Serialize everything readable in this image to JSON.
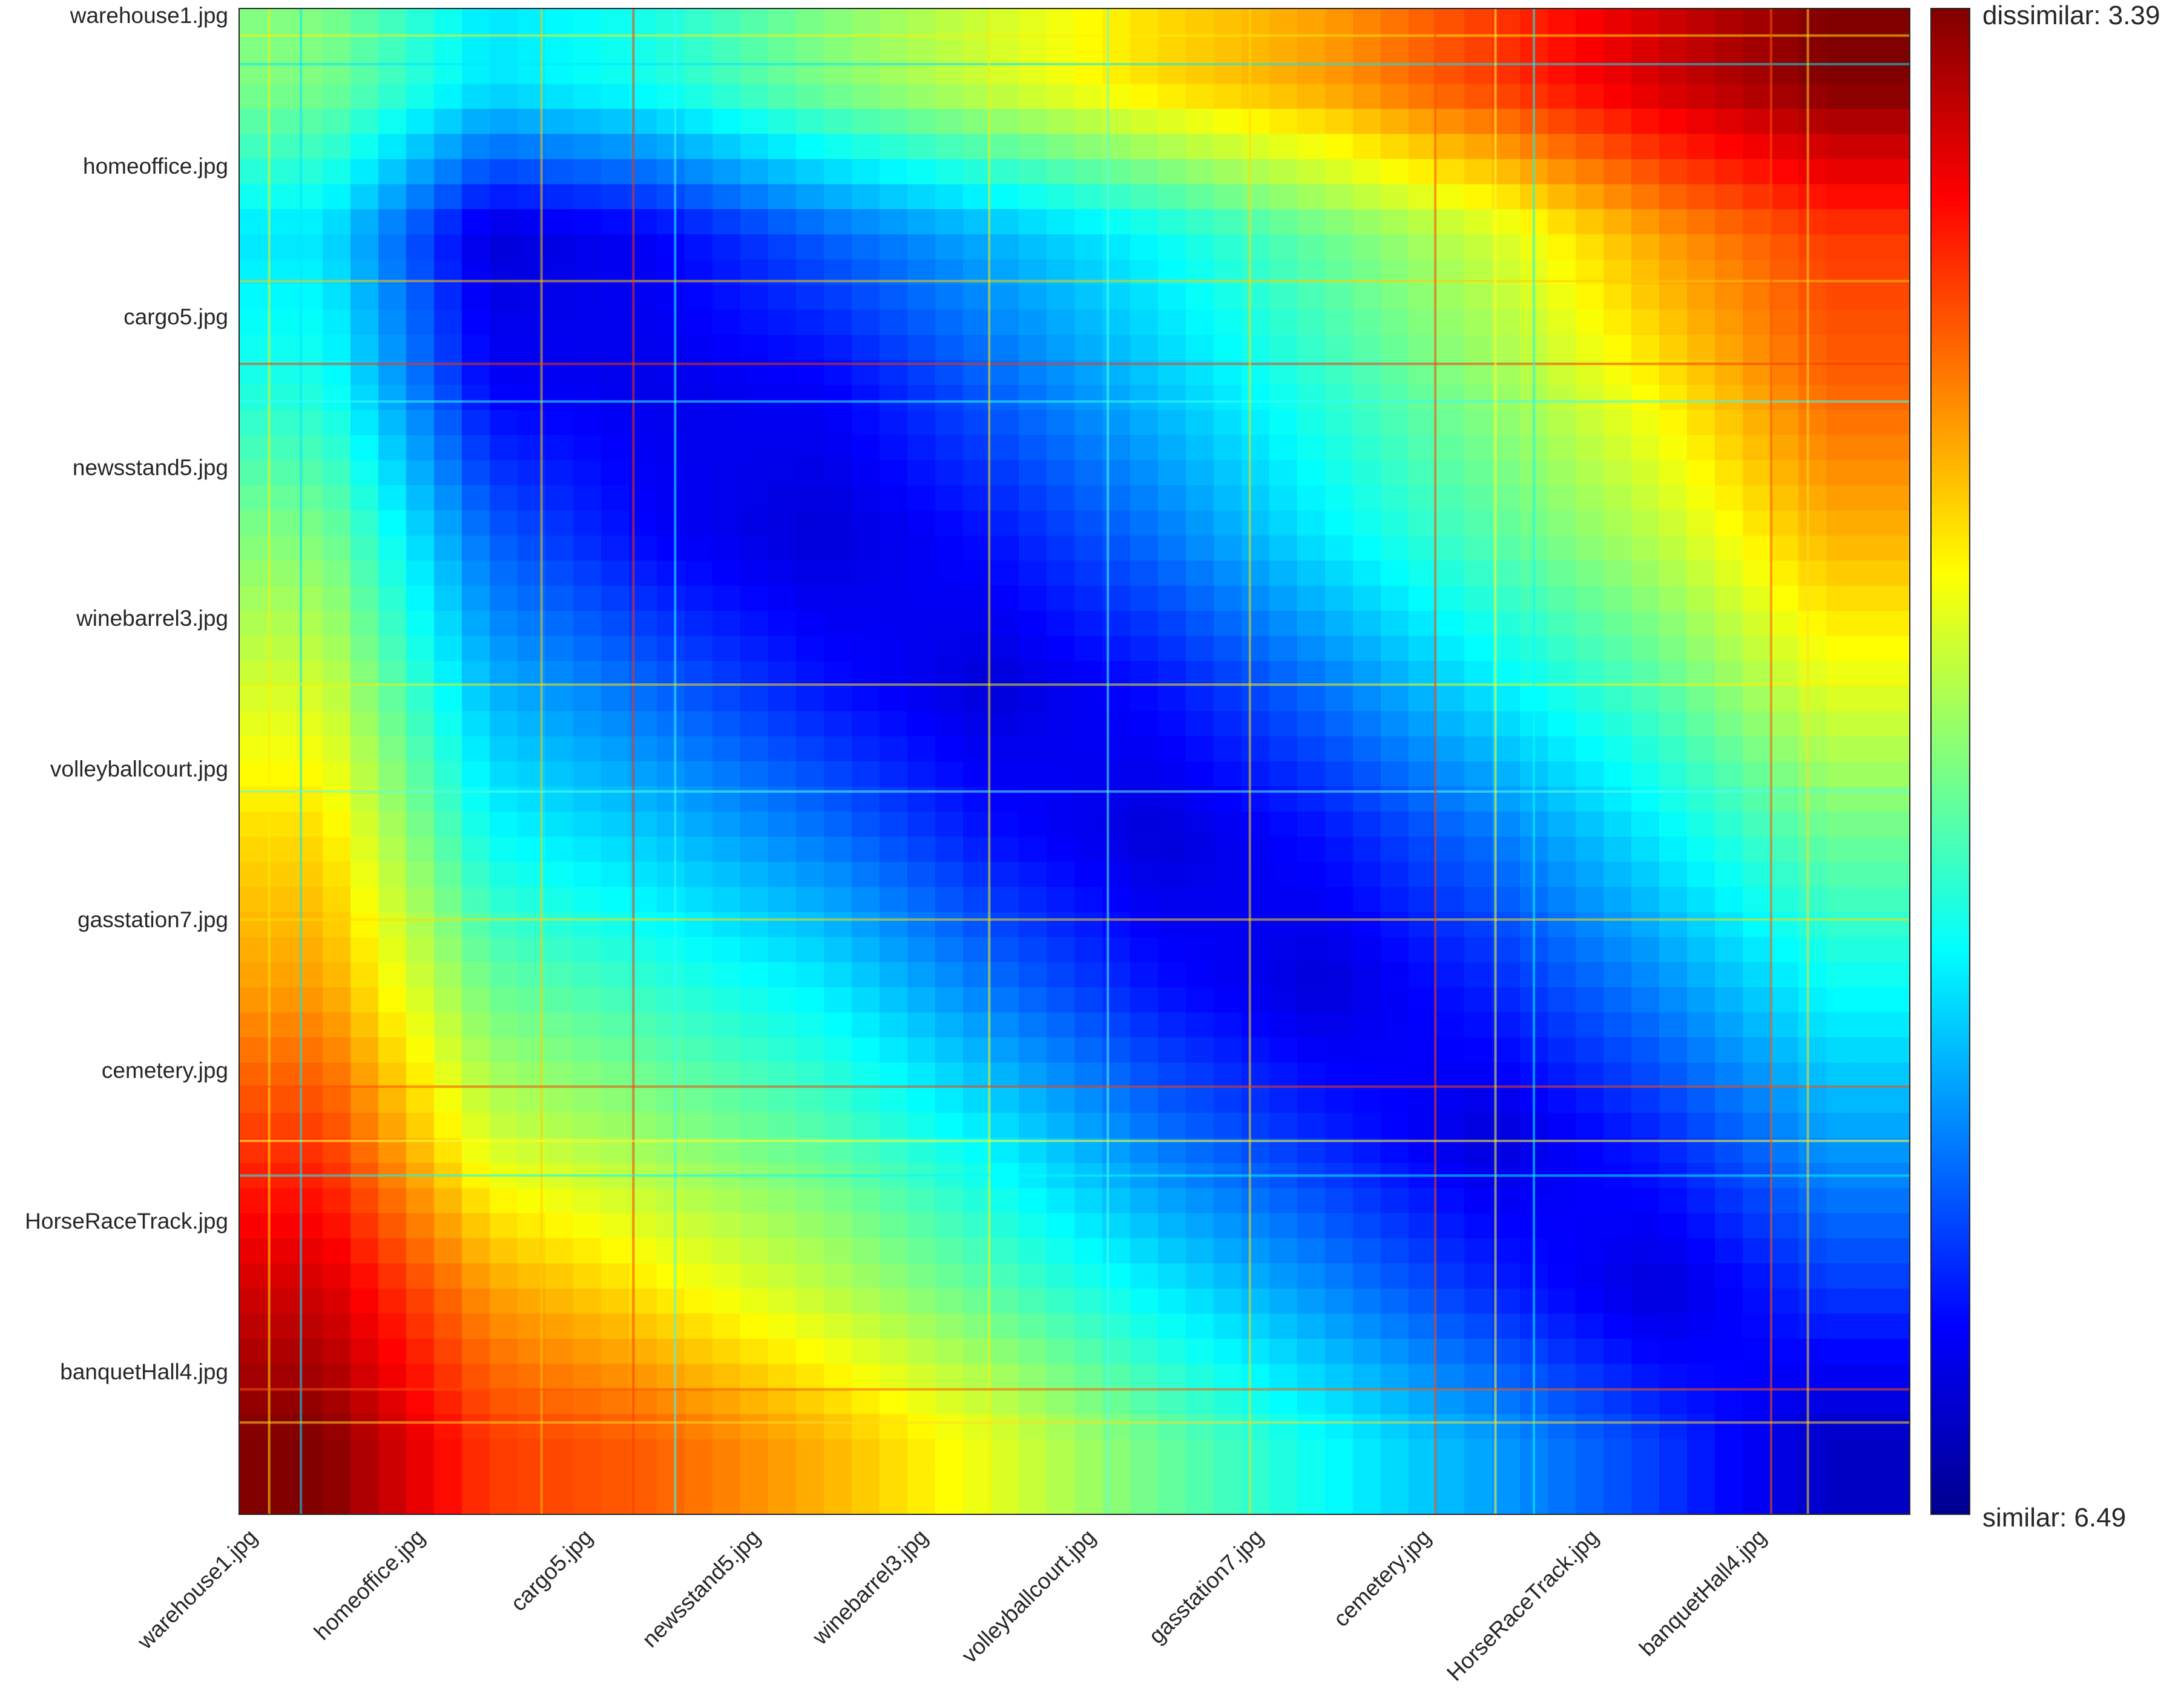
{
  "chart_data": {
    "type": "heatmap",
    "title": "",
    "xlabel": "",
    "ylabel": "",
    "row_labels": [
      "warehouse1.jpg",
      "homeoffice.jpg",
      "cargo5.jpg",
      "newsstand5.jpg",
      "winebarrel3.jpg",
      "volleyballcourt.jpg",
      "gasstation7.jpg",
      "cemetery.jpg",
      "HorseRaceTrack.jpg",
      "banquetHall4.jpg"
    ],
    "col_labels": [
      "warehouse1.jpg",
      "homeoffice.jpg",
      "cargo5.jpg",
      "newsstand5.jpg",
      "winebarrel3.jpg",
      "volleyballcourt.jpg",
      "gasstation7.jpg",
      "cemetery.jpg",
      "HorseRaceTrack.jpg",
      "banquetHall4.jpg"
    ],
    "colormap": "jet",
    "colorbar": {
      "max_label": "dissimilar: 3.39",
      "min_label": "similar: 6.49"
    },
    "matrix": [
      [
        0.5,
        0.35,
        0.4,
        0.5,
        0.58,
        0.66,
        0.72,
        0.82,
        0.92,
        1.0
      ],
      [
        0.35,
        0.08,
        0.12,
        0.22,
        0.3,
        0.38,
        0.48,
        0.58,
        0.72,
        0.82
      ],
      [
        0.4,
        0.12,
        0.1,
        0.12,
        0.22,
        0.32,
        0.42,
        0.52,
        0.64,
        0.78
      ],
      [
        0.5,
        0.22,
        0.12,
        0.08,
        0.14,
        0.24,
        0.36,
        0.46,
        0.56,
        0.7
      ],
      [
        0.58,
        0.3,
        0.22,
        0.14,
        0.08,
        0.14,
        0.24,
        0.36,
        0.46,
        0.6
      ],
      [
        0.66,
        0.38,
        0.32,
        0.24,
        0.14,
        0.08,
        0.14,
        0.24,
        0.36,
        0.48
      ],
      [
        0.72,
        0.48,
        0.42,
        0.36,
        0.24,
        0.14,
        0.08,
        0.16,
        0.26,
        0.38
      ],
      [
        0.82,
        0.58,
        0.52,
        0.46,
        0.36,
        0.24,
        0.16,
        0.08,
        0.16,
        0.28
      ],
      [
        0.92,
        0.72,
        0.64,
        0.56,
        0.46,
        0.36,
        0.26,
        0.16,
        0.08,
        0.18
      ],
      [
        1.0,
        0.82,
        0.78,
        0.7,
        0.6,
        0.48,
        0.38,
        0.28,
        0.18,
        0.06
      ]
    ]
  }
}
